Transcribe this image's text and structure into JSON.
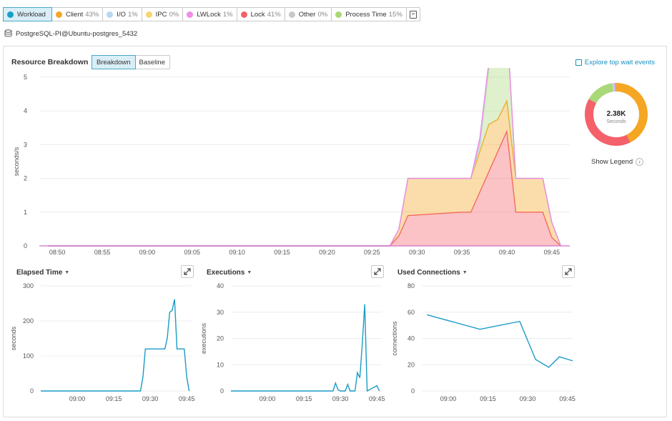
{
  "filters": [
    {
      "label": "Workload",
      "pct": "",
      "color": "#1aa0c8",
      "active": true
    },
    {
      "label": "Client",
      "pct": "43%",
      "color": "#f5a623"
    },
    {
      "label": "I/O",
      "pct": "1%",
      "color": "#b9d8f0"
    },
    {
      "label": "IPC",
      "pct": "0%",
      "color": "#f5d76e"
    },
    {
      "label": "LWLock",
      "pct": "1%",
      "color": "#f08be8"
    },
    {
      "label": "Lock",
      "pct": "41%",
      "color": "#f4616a"
    },
    {
      "label": "Other",
      "pct": "0%",
      "color": "#c8c8c8"
    },
    {
      "label": "Process Time",
      "pct": "15%",
      "color": "#a8d878"
    }
  ],
  "host": "PostgreSQL-PI@Ubuntu-postgres_5432",
  "resource": {
    "title": "Resource Breakdown",
    "toggle": [
      "Breakdown",
      "Baseline"
    ],
    "explore": "Explore top wait events",
    "ylabel": "seconds/s",
    "donut_value": "2.38K",
    "donut_unit": "Seconds",
    "show_legend": "Show Legend"
  },
  "chart_data": [
    {
      "type": "area",
      "ylabel": "seconds/s",
      "ylim": [
        0,
        5
      ],
      "yticks": [
        "0",
        "1",
        "2",
        "3",
        "4",
        "5"
      ],
      "xticks": [
        "08:50",
        "08:55",
        "09:00",
        "09:05",
        "09:10",
        "09:15",
        "09:20",
        "09:25",
        "09:30",
        "09:35",
        "09:40",
        "09:45"
      ],
      "x": [
        "08:49",
        "09:27",
        "09:28",
        "09:29",
        "09:35",
        "09:36",
        "09:37",
        "09:38",
        "09:39",
        "09:40",
        "09:41",
        "09:44",
        "09:45",
        "09:46"
      ],
      "series": [
        {
          "name": "Lock",
          "color": "#f4616a",
          "values": [
            0,
            0,
            0.3,
            0.9,
            1.0,
            1.0,
            1.6,
            2.2,
            2.8,
            3.4,
            1.0,
            1.0,
            0.25,
            0
          ]
        },
        {
          "name": "Client",
          "color": "#f5a623",
          "values": [
            0,
            0,
            0.2,
            1.1,
            1.0,
            1.0,
            1.2,
            1.4,
            0.95,
            0.9,
            1.0,
            1.0,
            0.45,
            0
          ]
        },
        {
          "name": "Process Time",
          "color": "#a8d878",
          "values": [
            0,
            0,
            0,
            0,
            0,
            0,
            0.2,
            1.7,
            1.8,
            2.3,
            0,
            0,
            0,
            0
          ]
        },
        {
          "name": "I/O",
          "color": "#b9d8f0",
          "values": [
            0,
            0,
            0,
            0,
            0,
            0,
            0,
            0.1,
            0.1,
            0.05,
            0,
            0,
            0,
            0
          ]
        },
        {
          "name": "LWLock",
          "color": "#f08be8",
          "values": [
            0,
            0,
            0,
            0,
            0,
            0,
            0.2,
            0.05,
            0.05,
            0,
            0,
            0,
            0,
            0
          ]
        }
      ]
    },
    {
      "type": "pie",
      "slices": [
        {
          "name": "Client",
          "value": 43,
          "color": "#f5a623"
        },
        {
          "name": "Lock",
          "value": 41,
          "color": "#f4616a"
        },
        {
          "name": "Process Time",
          "value": 15,
          "color": "#a8d878"
        },
        {
          "name": "I/O",
          "value": 1,
          "color": "#b9d8f0"
        },
        {
          "name": "LWLock",
          "value": 1,
          "color": "#f08be8"
        }
      ]
    },
    {
      "type": "line",
      "title": "Elapsed Time",
      "ylabel": "seconds",
      "ylim": [
        0,
        300
      ],
      "yticks": [
        "0",
        "100",
        "200",
        "300"
      ],
      "xticks": [
        "09:00",
        "09:15",
        "09:30",
        "09:45"
      ],
      "xlim": [
        "08:45",
        "09:47"
      ],
      "color": "#1a9bc7",
      "x": [
        "08:45",
        "09:26",
        "09:27",
        "09:28",
        "09:36",
        "09:37",
        "09:38",
        "09:39",
        "09:40",
        "09:41",
        "09:44",
        "09:45",
        "09:46"
      ],
      "values": [
        0,
        0,
        40,
        120,
        120,
        150,
        225,
        230,
        262,
        120,
        120,
        40,
        0
      ]
    },
    {
      "type": "line",
      "title": "Executions",
      "ylabel": "executions",
      "ylim": [
        0,
        40
      ],
      "yticks": [
        "0",
        "10",
        "20",
        "30",
        "40"
      ],
      "xticks": [
        "09:00",
        "09:15",
        "09:30",
        "09:45"
      ],
      "xlim": [
        "08:45",
        "09:47"
      ],
      "color": "#1a9bc7",
      "x": [
        "08:45",
        "09:27",
        "09:28",
        "09:29",
        "09:30",
        "09:32",
        "09:33",
        "09:34",
        "09:36",
        "09:37",
        "09:38",
        "09:39",
        "09:40",
        "09:41",
        "09:45",
        "09:46"
      ],
      "values": [
        0,
        0,
        3,
        0.5,
        0,
        0,
        2.5,
        0,
        0,
        7,
        5,
        18,
        33,
        0,
        2,
        0
      ]
    },
    {
      "type": "line",
      "title": "Used Connections",
      "ylabel": "connections",
      "ylim": [
        0,
        80
      ],
      "yticks": [
        "0",
        "20",
        "40",
        "60",
        "80"
      ],
      "xticks": [
        "09:00",
        "09:15",
        "09:30",
        "09:45"
      ],
      "xlim": [
        "08:50",
        "09:47"
      ],
      "color": "#1a9bc7",
      "x": [
        "08:52",
        "09:12",
        "09:27",
        "09:33",
        "09:38",
        "09:42",
        "09:47"
      ],
      "values": [
        58,
        47,
        53,
        24,
        18,
        26,
        23
      ]
    }
  ],
  "small_titles": [
    "Elapsed Time",
    "Executions",
    "Used Connections"
  ]
}
